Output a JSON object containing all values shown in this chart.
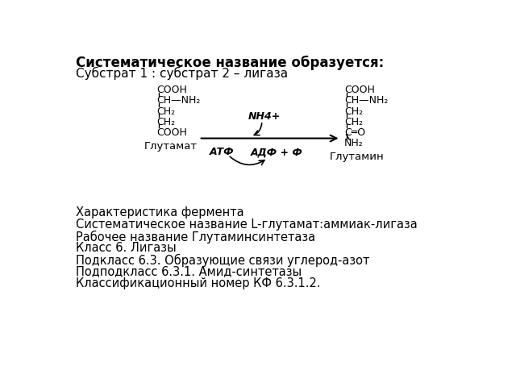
{
  "background_color": "#ffffff",
  "title_bold": "Систематическое название образуется:",
  "subtitle": "Субстрат 1 : субстрат 2 – лигаза",
  "bottom_lines": [
    "Характеристика фермента",
    "Систематическое название L-глутамат:аммиак-лигаза",
    "Рабочее название Глутаминсинтетаза",
    "Класс 6. Лигазы",
    "Подкласс 6.3. Образующие связи углерод-азот",
    "Подподкласс 6.3.1. Амид-синтетазы",
    "Классификационный номер КФ 6.3.1.2."
  ],
  "glutamat_label": "Глутамат",
  "glutamin_label": "Глутамин",
  "nh4_label": "NH4+",
  "atf_label": "АТФ",
  "adf_label": "АДФ + Ф",
  "font_size_title": 12,
  "font_size_subtitle": 11,
  "font_size_body": 10.5,
  "font_size_chem": 9,
  "font_size_label": 9.5
}
